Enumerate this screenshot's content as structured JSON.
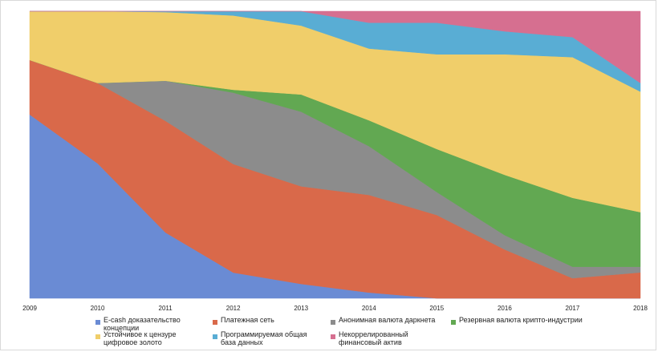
{
  "chart_data": {
    "type": "area",
    "stacked": "percent",
    "categories": [
      "2009",
      "2010",
      "2011",
      "2012",
      "2013",
      "2014",
      "2015",
      "2016",
      "2017",
      "2018"
    ],
    "ylim": [
      0,
      100
    ],
    "grid": false,
    "legend_position": "bottom",
    "series": [
      {
        "name": "E-cash доказательство концепции",
        "color": "#6a8bd4",
        "values": [
          64,
          47,
          23,
          9,
          5,
          2,
          0,
          0,
          0,
          0
        ]
      },
      {
        "name": "Платежная сеть",
        "color": "#d9694a",
        "values": [
          19,
          28,
          39,
          38,
          34,
          34,
          29,
          17,
          7,
          9
        ]
      },
      {
        "name": "Анонимная валюта даркнета",
        "color": "#8c8c8c",
        "values": [
          0,
          0,
          14,
          25,
          26,
          17,
          8,
          5,
          4,
          2
        ]
      },
      {
        "name": "Резервная валюта крипто-индустрии",
        "color": "#62a852",
        "values": [
          0,
          0,
          0,
          1,
          6,
          9,
          15,
          21,
          24,
          19
        ]
      },
      {
        "name": "Устойчивое к цензуре цифровое золото",
        "color": "#f0ce6a",
        "values": [
          17,
          25,
          24,
          26,
          24,
          25,
          33,
          42,
          49,
          42
        ]
      },
      {
        "name": "Программируемая общая база данных",
        "color": "#59add4",
        "values": [
          0,
          0,
          0.3,
          1.5,
          5,
          9,
          11,
          8,
          7,
          3
        ]
      },
      {
        "name": "Некоррелированный финансовый актив",
        "color": "#d66f90",
        "values": [
          0,
          0,
          0,
          0,
          0,
          4,
          4,
          7,
          9,
          25
        ]
      }
    ]
  },
  "legend": [
    {
      "label": "E-cash доказательство\nконцепции",
      "icon": "legend-swatch-blue",
      "color": "#6a8bd4"
    },
    {
      "label": "Платежная сеть",
      "icon": "legend-swatch-orange",
      "color": "#d9694a"
    },
    {
      "label": "Анонимная валюта даркнета",
      "icon": "legend-swatch-gray",
      "color": "#8c8c8c"
    },
    {
      "label": "Резервная валюта крипто-индустрии",
      "icon": "legend-swatch-green",
      "color": "#62a852"
    },
    {
      "label": "Устойчивое к цензуре\nцифровое золото",
      "icon": "legend-swatch-yellow",
      "color": "#f0ce6a"
    },
    {
      "label": "Программируемая общая\nбаза данных",
      "icon": "legend-swatch-lightblue",
      "color": "#59add4"
    },
    {
      "label": "Некоррелированный\nфинансовый актив",
      "icon": "legend-swatch-pink",
      "color": "#d66f90"
    }
  ]
}
